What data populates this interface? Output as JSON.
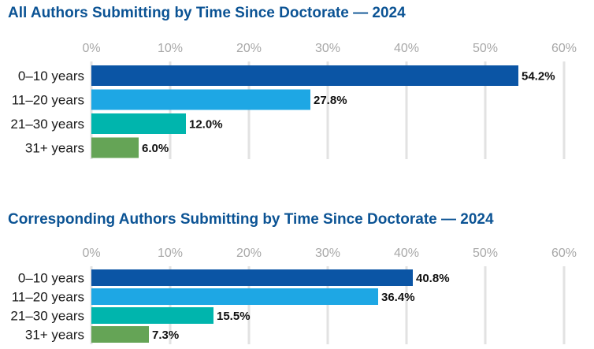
{
  "chart_data": [
    {
      "type": "bar",
      "orientation": "horizontal",
      "title": "All Authors Submitting by Time Since Doctorate — 2024",
      "categories": [
        "0–10 years",
        "11–20 years",
        "21–30 years",
        "31+ years"
      ],
      "values": [
        54.2,
        27.8,
        12.0,
        6.0
      ],
      "value_labels": [
        "54.2%",
        "27.8%",
        "12.0%",
        "6.0%"
      ],
      "colors": [
        "#0b55a5",
        "#1ea7e4",
        "#00b5ad",
        "#65a456"
      ],
      "xlim": [
        0,
        60
      ],
      "ticks": [
        0,
        10,
        20,
        30,
        40,
        50,
        60
      ],
      "tick_labels": [
        "0%",
        "10%",
        "20%",
        "30%",
        "40%",
        "50%",
        "60%"
      ],
      "grid": true,
      "xlabel": "",
      "ylabel": ""
    },
    {
      "type": "bar",
      "orientation": "horizontal",
      "title": "Corresponding Authors Submitting by Time Since Doctorate — 2024",
      "categories": [
        "0–10 years",
        "11–20 years",
        "21–30 years",
        "31+ years"
      ],
      "values": [
        40.8,
        36.4,
        15.5,
        7.3
      ],
      "value_labels": [
        "40.8%",
        "36.4%",
        "15.5%",
        "7.3%"
      ],
      "colors": [
        "#0b55a5",
        "#1ea7e4",
        "#00b5ad",
        "#65a456"
      ],
      "xlim": [
        0,
        60
      ],
      "ticks": [
        0,
        10,
        20,
        30,
        40,
        50,
        60
      ],
      "tick_labels": [
        "0%",
        "10%",
        "20%",
        "30%",
        "40%",
        "50%",
        "60%"
      ],
      "grid": true,
      "xlabel": "",
      "ylabel": ""
    }
  ]
}
